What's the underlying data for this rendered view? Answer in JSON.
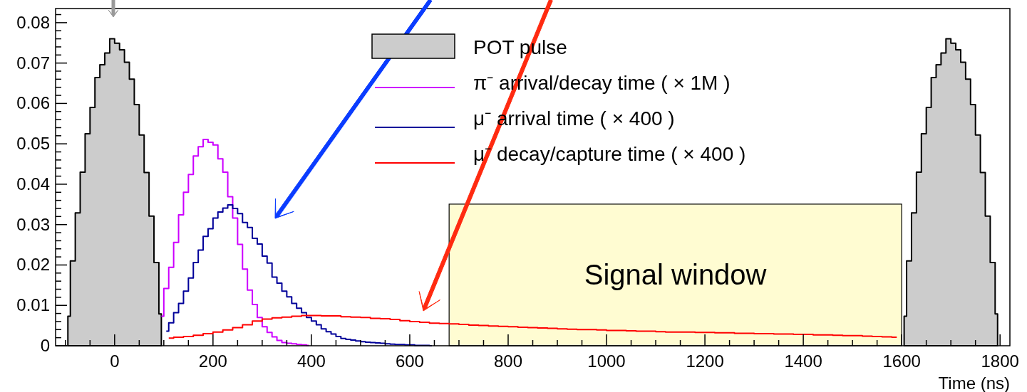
{
  "chart_data": {
    "type": "step",
    "xlabel": "Time (ns)",
    "legend": "top",
    "grid": false,
    "xlim": [
      -120,
      1820
    ],
    "ylim": [
      0,
      0.0835
    ],
    "xticks": [
      {
        "value": -100,
        "label": null
      },
      {
        "value": -50,
        "label": null
      },
      0,
      {
        "value": 50,
        "label": null
      },
      {
        "value": 100,
        "label": null
      },
      {
        "value": 150,
        "label": null
      },
      200,
      {
        "value": 250,
        "label": null
      },
      {
        "value": 300,
        "label": null
      },
      {
        "value": 350,
        "label": null
      },
      400,
      {
        "value": 450,
        "label": null
      },
      {
        "value": 500,
        "label": null
      },
      {
        "value": 550,
        "label": null
      },
      600,
      {
        "value": 650,
        "label": null
      },
      {
        "value": 700,
        "label": null
      },
      {
        "value": 750,
        "label": null
      },
      800,
      {
        "value": 850,
        "label": null
      },
      {
        "value": 900,
        "label": null
      },
      {
        "value": 950,
        "label": null
      },
      1000,
      {
        "value": 1050,
        "label": null
      },
      {
        "value": 1100,
        "label": null
      },
      {
        "value": 1150,
        "label": null
      },
      1200,
      {
        "value": 1250,
        "label": null
      },
      {
        "value": 1300,
        "label": null
      },
      {
        "value": 1350,
        "label": null
      },
      1400,
      {
        "value": 1450,
        "label": null
      },
      {
        "value": 1500,
        "label": null
      },
      {
        "value": 1550,
        "label": null
      },
      1600,
      {
        "value": 1650,
        "label": null
      },
      {
        "value": 1700,
        "label": null
      },
      {
        "value": 1750,
        "label": null
      },
      1800
    ],
    "yticks": [
      0,
      {
        "value": 0.002,
        "label": null
      },
      {
        "value": 0.004,
        "label": null
      },
      {
        "value": 0.006,
        "label": null
      },
      {
        "value": 0.008,
        "label": null
      },
      0.01,
      {
        "value": 0.012,
        "label": null
      },
      {
        "value": 0.014,
        "label": null
      },
      {
        "value": 0.016,
        "label": null
      },
      {
        "value": 0.018,
        "label": null
      },
      0.02,
      {
        "value": 0.022,
        "label": null
      },
      {
        "value": 0.024,
        "label": null
      },
      {
        "value": 0.026,
        "label": null
      },
      {
        "value": 0.028,
        "label": null
      },
      0.03,
      {
        "value": 0.032,
        "label": null
      },
      {
        "value": 0.034,
        "label": null
      },
      {
        "value": 0.036,
        "label": null
      },
      {
        "value": 0.038,
        "label": null
      },
      0.04,
      {
        "value": 0.042,
        "label": null
      },
      {
        "value": 0.044,
        "label": null
      },
      {
        "value": 0.046,
        "label": null
      },
      {
        "value": 0.048,
        "label": null
      },
      0.05,
      {
        "value": 0.052,
        "label": null
      },
      {
        "value": 0.054,
        "label": null
      },
      {
        "value": 0.056,
        "label": null
      },
      {
        "value": 0.058,
        "label": null
      },
      0.06,
      {
        "value": 0.062,
        "label": null
      },
      {
        "value": 0.064,
        "label": null
      },
      {
        "value": 0.066,
        "label": null
      },
      {
        "value": 0.068,
        "label": null
      },
      0.07,
      {
        "value": 0.072,
        "label": null
      },
      {
        "value": 0.074,
        "label": null
      },
      {
        "value": 0.076,
        "label": null
      },
      {
        "value": 0.078,
        "label": null
      },
      0.08,
      {
        "value": 0.082,
        "label": null
      }
    ],
    "bands": [
      {
        "axis": "x",
        "from": 680,
        "to": 1600,
        "label": "Signal window",
        "color": "#fffcd2"
      }
    ],
    "series": [
      {
        "name": "POT pulse",
        "type": "area",
        "color": "#cccccc",
        "x": [
          -95,
          -85,
          -75,
          -65,
          -55,
          -45,
          -35,
          -25,
          -15,
          -5,
          5,
          15,
          25,
          35,
          45,
          55,
          65,
          75,
          85,
          95
        ],
        "values": [
          0.0073,
          0.021,
          0.0329,
          0.043,
          0.0525,
          0.059,
          0.0664,
          0.0696,
          0.0725,
          0.076,
          0.0749,
          0.0733,
          0.0702,
          0.066,
          0.0597,
          0.0522,
          0.0429,
          0.0321,
          0.0206,
          0.0079
        ]
      },
      {
        "type": "area",
        "color": "#cccccc",
        "x": [
          1605,
          1615,
          1625,
          1635,
          1645,
          1655,
          1665,
          1675,
          1685,
          1695,
          1705,
          1715,
          1725,
          1735,
          1745,
          1755,
          1765,
          1775,
          1785,
          1795
        ],
        "values": [
          0.0073,
          0.021,
          0.0329,
          0.043,
          0.0525,
          0.059,
          0.0664,
          0.0696,
          0.0725,
          0.076,
          0.0749,
          0.0733,
          0.0702,
          0.066,
          0.0597,
          0.0522,
          0.0429,
          0.0321,
          0.0206,
          0.0079
        ]
      },
      {
        "name": "π⁻ arrival/decay time ( × 1M )",
        "color": "#cc00ff",
        "x": [
          95,
          105,
          115,
          125,
          135,
          145,
          155,
          165,
          175,
          185,
          195,
          205,
          215,
          225,
          235,
          245,
          255,
          265,
          275,
          285,
          295,
          305,
          315,
          325,
          335,
          345,
          355,
          365,
          375,
          385,
          395
        ],
        "values": [
          0.0073,
          0.0142,
          0.0194,
          0.0256,
          0.0324,
          0.038,
          0.0424,
          0.047,
          0.0493,
          0.0511,
          0.0504,
          0.0497,
          0.0463,
          0.043,
          0.0369,
          0.0316,
          0.0251,
          0.019,
          0.0138,
          0.0102,
          0.007,
          0.0047,
          0.0033,
          0.0022,
          0.0013,
          0.0008,
          0.0006,
          0.0005,
          0.0003,
          0.0002,
          0.0001
        ]
      },
      {
        "name": "μ⁻ arrival time ( × 400 )",
        "color": "#000099",
        "x": [
          105,
          115,
          125,
          135,
          145,
          155,
          165,
          175,
          185,
          195,
          205,
          215,
          225,
          235,
          245,
          255,
          265,
          275,
          285,
          295,
          305,
          315,
          325,
          335,
          345,
          355,
          365,
          375,
          385,
          395,
          405,
          415,
          425,
          435,
          445,
          455,
          465,
          475,
          485,
          495,
          505,
          515,
          525,
          535,
          545,
          555,
          565,
          575,
          585,
          595,
          605,
          615,
          625,
          635,
          645
        ],
        "values": [
          0.0036,
          0.0057,
          0.0082,
          0.0105,
          0.0135,
          0.0168,
          0.0206,
          0.0237,
          0.0271,
          0.029,
          0.0316,
          0.0331,
          0.0341,
          0.0349,
          0.034,
          0.0327,
          0.0305,
          0.0293,
          0.0266,
          0.0252,
          0.0222,
          0.0205,
          0.017,
          0.0155,
          0.0135,
          0.0121,
          0.0105,
          0.0093,
          0.0082,
          0.007,
          0.0061,
          0.0052,
          0.0042,
          0.0035,
          0.0029,
          0.0023,
          0.0018,
          0.0016,
          0.0014,
          0.0012,
          0.001,
          0.0009,
          0.0008,
          0.0007,
          0.0006,
          0.0005,
          0.0004,
          0.0003,
          0.0003,
          0.0002,
          0.0002,
          0.0001,
          0.0001,
          0.0001,
          0
        ]
      },
      {
        "name": "μ⁻ decay/capture time ( × 400 )",
        "color": "#ff0000",
        "x": [
          110,
          130,
          150,
          170,
          190,
          210,
          230,
          250,
          270,
          290,
          310,
          330,
          350,
          370,
          390,
          410,
          430,
          450,
          470,
          490,
          510,
          530,
          550,
          570,
          590,
          610,
          630,
          650,
          670,
          690,
          710,
          730,
          750,
          770,
          790,
          810,
          830,
          850,
          870,
          890,
          910,
          930,
          950,
          970,
          990,
          1010,
          1030,
          1050,
          1070,
          1090,
          1110,
          1130,
          1150,
          1170,
          1190,
          1210,
          1230,
          1250,
          1270,
          1290,
          1310,
          1330,
          1350,
          1370,
          1390,
          1410,
          1430,
          1450,
          1470,
          1490,
          1510,
          1530,
          1550,
          1570,
          1590
        ],
        "values": [
          0.0019,
          0.0021,
          0.0023,
          0.0026,
          0.003,
          0.0034,
          0.0039,
          0.0045,
          0.0052,
          0.0061,
          0.0066,
          0.0069,
          0.0071,
          0.0073,
          0.0075,
          0.0075,
          0.0074,
          0.0074,
          0.0072,
          0.0071,
          0.007,
          0.0068,
          0.0067,
          0.0065,
          0.0062,
          0.006,
          0.0058,
          0.0056,
          0.0055,
          0.0054,
          0.0053,
          0.0051,
          0.005,
          0.0049,
          0.0048,
          0.0047,
          0.0046,
          0.0045,
          0.0044,
          0.0043,
          0.0042,
          0.0041,
          0.004,
          0.004,
          0.0039,
          0.0038,
          0.0038,
          0.0037,
          0.0036,
          0.0036,
          0.0035,
          0.0034,
          0.0034,
          0.0034,
          0.0033,
          0.0033,
          0.0032,
          0.0032,
          0.0031,
          0.0031,
          0.003,
          0.003,
          0.0029,
          0.0029,
          0.0028,
          0.0028,
          0.0027,
          0.0027,
          0.0026,
          0.0025,
          0.0025,
          0.0024,
          0.0023,
          0.0022,
          0.0021
        ]
      }
    ]
  }
}
